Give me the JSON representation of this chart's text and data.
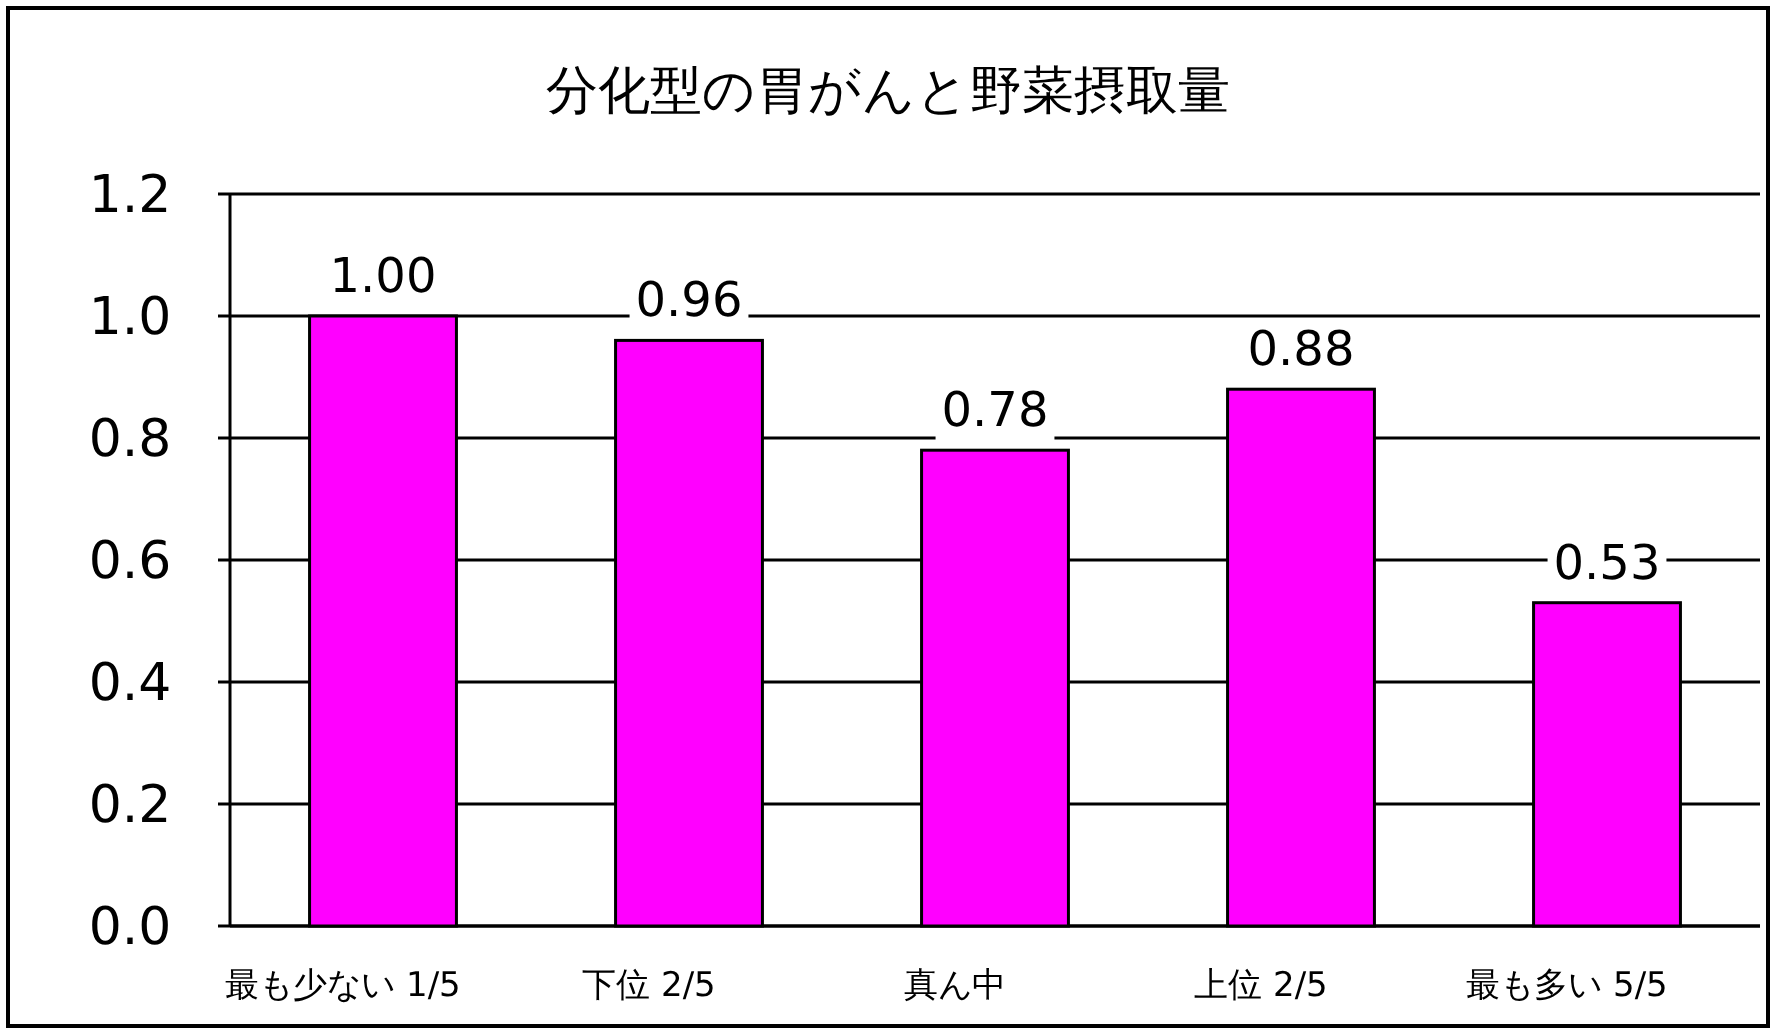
{
  "chart_data": {
    "type": "bar",
    "title": "分化型の胃がんと野菜摂取量",
    "categories": [
      "最も少ない 1/5",
      "下位 2/5",
      "真ん中",
      "上位 2/5",
      "最も多い 5/5"
    ],
    "values": [
      1.0,
      0.96,
      0.78,
      0.88,
      0.53
    ],
    "value_labels": [
      "1.00",
      "0.96",
      "0.78",
      "0.88",
      "0.53"
    ],
    "color": "#ff00ff",
    "ylim": [
      0,
      1.2
    ],
    "yticks": [
      {
        "value": 0,
        "label": "0.0"
      },
      {
        "value": 0.2,
        "label": "0.2"
      },
      {
        "value": 0.4,
        "label": "0.4"
      },
      {
        "value": 0.6,
        "label": "0.6"
      },
      {
        "value": 0.8,
        "label": "0.8"
      },
      {
        "value": 1.0,
        "label": "1.0"
      },
      {
        "value": 1.2,
        "label": "1.2"
      }
    ],
    "grid": "y"
  }
}
